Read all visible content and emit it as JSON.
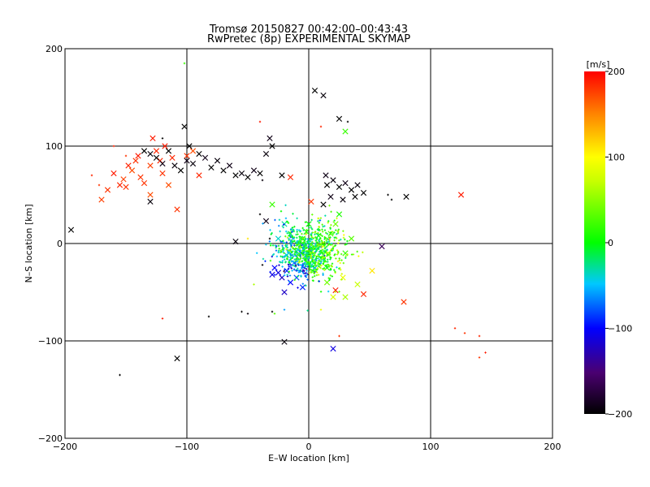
{
  "chart_data": {
    "type": "scatter",
    "title": "Tromsø 20150827 00:42:00–00:43:43",
    "subtitle": "RwPretec (8p) EXPERIMENTAL SKYMAP",
    "xlabel": "E–W location [km]",
    "ylabel": "N–S location [km]",
    "xlim": [
      -200,
      200
    ],
    "ylim": [
      -200,
      200
    ],
    "xticks": [
      -200,
      -100,
      0,
      100,
      200
    ],
    "yticks": [
      -200,
      -100,
      0,
      100,
      200
    ],
    "grid_lines_x": [
      -100,
      0,
      100
    ],
    "grid_lines_y": [
      -100,
      0,
      100
    ],
    "colorbar": {
      "label": "[m/s]",
      "range": [
        -200,
        200
      ],
      "ticks": [
        200,
        100,
        0,
        -100,
        -200
      ],
      "colormap": [
        "#000000",
        "#6a00a0",
        "#0000ff",
        "#00c8ff",
        "#00ff00",
        "#ffff00",
        "#ff8000",
        "#ff0000"
      ]
    },
    "points": [
      {
        "x": -160,
        "y": 72,
        "v": 190,
        "m": "x"
      },
      {
        "x": -155,
        "y": 60,
        "v": 185,
        "m": "x"
      },
      {
        "x": -150,
        "y": 58,
        "v": 180,
        "m": "x"
      },
      {
        "x": -145,
        "y": 75,
        "v": 170,
        "m": "x"
      },
      {
        "x": -140,
        "y": 90,
        "v": 190,
        "m": "x"
      },
      {
        "x": -135,
        "y": 62,
        "v": 180,
        "m": "x"
      },
      {
        "x": -130,
        "y": 80,
        "v": 175,
        "m": "x"
      },
      {
        "x": -125,
        "y": 95,
        "v": 185,
        "m": "x"
      },
      {
        "x": -120,
        "y": 72,
        "v": 180,
        "m": "x"
      },
      {
        "x": -118,
        "y": 100,
        "v": 190,
        "m": "x"
      },
      {
        "x": -115,
        "y": 60,
        "v": 170,
        "m": "x"
      },
      {
        "x": -112,
        "y": 88,
        "v": 185,
        "m": "x"
      },
      {
        "x": -138,
        "y": 68,
        "v": 180,
        "m": "x"
      },
      {
        "x": -148,
        "y": 80,
        "v": 185,
        "m": "x"
      },
      {
        "x": -170,
        "y": 45,
        "v": 175,
        "m": "x"
      },
      {
        "x": -165,
        "y": 55,
        "v": 180,
        "m": "x"
      },
      {
        "x": -128,
        "y": 108,
        "v": 190,
        "m": "x"
      },
      {
        "x": -108,
        "y": 35,
        "v": 180,
        "m": "x"
      },
      {
        "x": -130,
        "y": 50,
        "v": 170,
        "m": "x"
      },
      {
        "x": -122,
        "y": 85,
        "v": 185,
        "m": "x"
      },
      {
        "x": -142,
        "y": 85,
        "v": 180,
        "m": "x"
      },
      {
        "x": -152,
        "y": 66,
        "v": 175,
        "m": "x"
      },
      {
        "x": -100,
        "y": 90,
        "v": 180,
        "m": "x"
      },
      {
        "x": -95,
        "y": 95,
        "v": 170,
        "m": "x"
      },
      {
        "x": -90,
        "y": 70,
        "v": 185,
        "m": "x"
      },
      {
        "x": 125,
        "y": 50,
        "v": 190,
        "m": "x"
      },
      {
        "x": 78,
        "y": -60,
        "v": 180,
        "m": "x"
      },
      {
        "x": 45,
        "y": -52,
        "v": 185,
        "m": "x"
      },
      {
        "x": 22,
        "y": -48,
        "v": 190,
        "m": "x"
      },
      {
        "x": 2,
        "y": 43,
        "v": 180,
        "m": "x"
      },
      {
        "x": -15,
        "y": 68,
        "v": 185,
        "m": "x"
      },
      {
        "x": -178,
        "y": 70,
        "v": 185,
        "m": "+"
      },
      {
        "x": -172,
        "y": 60,
        "v": 180,
        "m": "+"
      },
      {
        "x": -160,
        "y": 100,
        "v": 185,
        "m": "+"
      },
      {
        "x": -150,
        "y": 90,
        "v": 180,
        "m": "+"
      },
      {
        "x": -120,
        "y": -77,
        "v": 190,
        "m": "+"
      },
      {
        "x": 120,
        "y": -87,
        "v": 185,
        "m": "+"
      },
      {
        "x": 128,
        "y": -92,
        "v": 180,
        "m": "+"
      },
      {
        "x": 140,
        "y": -95,
        "v": 185,
        "m": "+"
      },
      {
        "x": 145,
        "y": -112,
        "v": 190,
        "m": "+"
      },
      {
        "x": 140,
        "y": -117,
        "v": 180,
        "m": "+"
      },
      {
        "x": -40,
        "y": 125,
        "v": 190,
        "m": "+"
      },
      {
        "x": 10,
        "y": 120,
        "v": 185,
        "m": "+"
      },
      {
        "x": 25,
        "y": -95,
        "v": 180,
        "m": "+"
      },
      {
        "x": -135,
        "y": 95,
        "v": -200,
        "m": "x"
      },
      {
        "x": -130,
        "y": 92,
        "v": -195,
        "m": "x"
      },
      {
        "x": -125,
        "y": 88,
        "v": -200,
        "m": "x"
      },
      {
        "x": -120,
        "y": 82,
        "v": -190,
        "m": "x"
      },
      {
        "x": -115,
        "y": 95,
        "v": -200,
        "m": "x"
      },
      {
        "x": -110,
        "y": 80,
        "v": -195,
        "m": "x"
      },
      {
        "x": -105,
        "y": 75,
        "v": -200,
        "m": "x"
      },
      {
        "x": -100,
        "y": 85,
        "v": -190,
        "m": "x"
      },
      {
        "x": -98,
        "y": 100,
        "v": -200,
        "m": "x"
      },
      {
        "x": -95,
        "y": 82,
        "v": -195,
        "m": "x"
      },
      {
        "x": -90,
        "y": 92,
        "v": -200,
        "m": "x"
      },
      {
        "x": -85,
        "y": 88,
        "v": -190,
        "m": "x"
      },
      {
        "x": -80,
        "y": 78,
        "v": -200,
        "m": "x"
      },
      {
        "x": -75,
        "y": 85,
        "v": -195,
        "m": "x"
      },
      {
        "x": -70,
        "y": 75,
        "v": -200,
        "m": "x"
      },
      {
        "x": -65,
        "y": 80,
        "v": -190,
        "m": "x"
      },
      {
        "x": -60,
        "y": 70,
        "v": -200,
        "m": "x"
      },
      {
        "x": -55,
        "y": 72,
        "v": -195,
        "m": "x"
      },
      {
        "x": -50,
        "y": 68,
        "v": -200,
        "m": "x"
      },
      {
        "x": -45,
        "y": 75,
        "v": -190,
        "m": "x"
      },
      {
        "x": -40,
        "y": 72,
        "v": -200,
        "m": "x"
      },
      {
        "x": -35,
        "y": 92,
        "v": -195,
        "m": "x"
      },
      {
        "x": -30,
        "y": 100,
        "v": -200,
        "m": "x"
      },
      {
        "x": -102,
        "y": 120,
        "v": -200,
        "m": "x"
      },
      {
        "x": -130,
        "y": 43,
        "v": -195,
        "m": "x"
      },
      {
        "x": -195,
        "y": 14,
        "v": -200,
        "m": "x"
      },
      {
        "x": -108,
        "y": -118,
        "v": -200,
        "m": "x"
      },
      {
        "x": -20,
        "y": -101,
        "v": -195,
        "m": "x"
      },
      {
        "x": 5,
        "y": 157,
        "v": -200,
        "m": "x"
      },
      {
        "x": 12,
        "y": 152,
        "v": -195,
        "m": "x"
      },
      {
        "x": 25,
        "y": 128,
        "v": -200,
        "m": "x"
      },
      {
        "x": -32,
        "y": 108,
        "v": -190,
        "m": "x"
      },
      {
        "x": 15,
        "y": 60,
        "v": -200,
        "m": "x"
      },
      {
        "x": 20,
        "y": 65,
        "v": -195,
        "m": "x"
      },
      {
        "x": 25,
        "y": 58,
        "v": -200,
        "m": "x"
      },
      {
        "x": 30,
        "y": 62,
        "v": -190,
        "m": "x"
      },
      {
        "x": 35,
        "y": 55,
        "v": -200,
        "m": "x"
      },
      {
        "x": 40,
        "y": 60,
        "v": -195,
        "m": "x"
      },
      {
        "x": 45,
        "y": 52,
        "v": -200,
        "m": "x"
      },
      {
        "x": 18,
        "y": 48,
        "v": -190,
        "m": "x"
      },
      {
        "x": 12,
        "y": 40,
        "v": -200,
        "m": "x"
      },
      {
        "x": 28,
        "y": 45,
        "v": -195,
        "m": "x"
      },
      {
        "x": 38,
        "y": 48,
        "v": -200,
        "m": "x"
      },
      {
        "x": 14,
        "y": 70,
        "v": -190,
        "m": "x"
      },
      {
        "x": 80,
        "y": 48,
        "v": -200,
        "m": "x"
      },
      {
        "x": -60,
        "y": 2,
        "v": -195,
        "m": "x"
      },
      {
        "x": -22,
        "y": 70,
        "v": -200,
        "m": "x"
      },
      {
        "x": -35,
        "y": 23,
        "v": -190,
        "m": "x"
      },
      {
        "x": 60,
        "y": -3,
        "v": -160,
        "m": "x"
      },
      {
        "x": 20,
        "y": -108,
        "v": -110,
        "m": "x"
      },
      {
        "x": -25,
        "y": -30,
        "v": -110,
        "m": "x"
      },
      {
        "x": -28,
        "y": -25,
        "v": -100,
        "m": "x"
      },
      {
        "x": -22,
        "y": -35,
        "v": -120,
        "m": "x"
      },
      {
        "x": -18,
        "y": -28,
        "v": -90,
        "m": "x"
      },
      {
        "x": -15,
        "y": -40,
        "v": -100,
        "m": "x"
      },
      {
        "x": -30,
        "y": -32,
        "v": -110,
        "m": "x"
      },
      {
        "x": -20,
        "y": -50,
        "v": -120,
        "m": "x"
      },
      {
        "x": -10,
        "y": -35,
        "v": -80,
        "m": "x"
      },
      {
        "x": -5,
        "y": -45,
        "v": -90,
        "m": "x"
      },
      {
        "x": -12,
        "y": -20,
        "v": -70,
        "m": "x"
      },
      {
        "x": 5,
        "y": -25,
        "v": -60,
        "m": "x"
      },
      {
        "x": 10,
        "y": -15,
        "v": -50,
        "m": "x"
      },
      {
        "x": 15,
        "y": -40,
        "v": 40,
        "m": "x"
      },
      {
        "x": 20,
        "y": -55,
        "v": 80,
        "m": "x"
      },
      {
        "x": 30,
        "y": -55,
        "v": 60,
        "m": "x"
      },
      {
        "x": 52,
        "y": -28,
        "v": 110,
        "m": "x"
      },
      {
        "x": 28,
        "y": -35,
        "v": 90,
        "m": "x"
      },
      {
        "x": 40,
        "y": -42,
        "v": 70,
        "m": "x"
      },
      {
        "x": -30,
        "y": 40,
        "v": 20,
        "m": "x"
      },
      {
        "x": 30,
        "y": 115,
        "v": 20,
        "m": "x"
      },
      {
        "x": -5,
        "y": 5,
        "v": 10,
        "m": "x"
      },
      {
        "x": 5,
        "y": -5,
        "v": 15,
        "m": "x"
      },
      {
        "x": -8,
        "y": 0,
        "v": 5,
        "m": "x"
      },
      {
        "x": 8,
        "y": 8,
        "v": 0,
        "m": "x"
      },
      {
        "x": -2,
        "y": 12,
        "v": 10,
        "m": "x"
      },
      {
        "x": 12,
        "y": -2,
        "v": 20,
        "m": "x"
      },
      {
        "x": 0,
        "y": -10,
        "v": -10,
        "m": "x"
      },
      {
        "x": -10,
        "y": -8,
        "v": -20,
        "m": "x"
      },
      {
        "x": 18,
        "y": 10,
        "v": 30,
        "m": "x"
      },
      {
        "x": -15,
        "y": 10,
        "v": -15,
        "m": "x"
      },
      {
        "x": 22,
        "y": 20,
        "v": 40,
        "m": "x"
      },
      {
        "x": -18,
        "y": -12,
        "v": -40,
        "m": "x"
      },
      {
        "x": 35,
        "y": 5,
        "v": 30,
        "m": "x"
      },
      {
        "x": 30,
        "y": -10,
        "v": 20,
        "m": "x"
      },
      {
        "x": 25,
        "y": 30,
        "v": 10,
        "m": "x"
      },
      {
        "x": -20,
        "y": 20,
        "v": -30,
        "m": "x"
      },
      {
        "x": -25,
        "y": 5,
        "v": -40,
        "m": "x"
      },
      {
        "x": 0,
        "y": 20,
        "v": 0,
        "m": "x"
      },
      {
        "x": 4,
        "y": -20,
        "v": -30,
        "m": "x"
      },
      {
        "x": 15,
        "y": -25,
        "v": 10,
        "m": "x"
      },
      {
        "x": -45,
        "y": -42,
        "v": 60,
        "m": "+"
      },
      {
        "x": -120,
        "y": 108,
        "v": -200,
        "m": "+"
      },
      {
        "x": -55,
        "y": -70,
        "v": -200,
        "m": "+"
      },
      {
        "x": -50,
        "y": -72,
        "v": -195,
        "m": "+"
      },
      {
        "x": -82,
        "y": -75,
        "v": -200,
        "m": "+"
      },
      {
        "x": -155,
        "y": -135,
        "v": -200,
        "m": "+"
      },
      {
        "x": -30,
        "y": -70,
        "v": -200,
        "m": "+"
      },
      {
        "x": -32,
        "y": 5,
        "v": -200,
        "m": "+"
      },
      {
        "x": -38,
        "y": -22,
        "v": -200,
        "m": "+"
      },
      {
        "x": 65,
        "y": 50,
        "v": -200,
        "m": "+"
      },
      {
        "x": 68,
        "y": 45,
        "v": -200,
        "m": "+"
      },
      {
        "x": -38,
        "y": 65,
        "v": -195,
        "m": "+"
      },
      {
        "x": -40,
        "y": 30,
        "v": -200,
        "m": "+"
      },
      {
        "x": 32,
        "y": 125,
        "v": -200,
        "m": "+"
      },
      {
        "x": -102,
        "y": 185,
        "v": 20,
        "m": "+"
      },
      {
        "x": -50,
        "y": 5,
        "v": 110,
        "m": "+"
      },
      {
        "x": -28,
        "y": -72,
        "v": 30,
        "m": "+"
      },
      {
        "x": 10,
        "y": -68,
        "v": 90,
        "m": "+"
      },
      {
        "x": -20,
        "y": -68,
        "v": -60,
        "m": "+"
      }
    ]
  }
}
